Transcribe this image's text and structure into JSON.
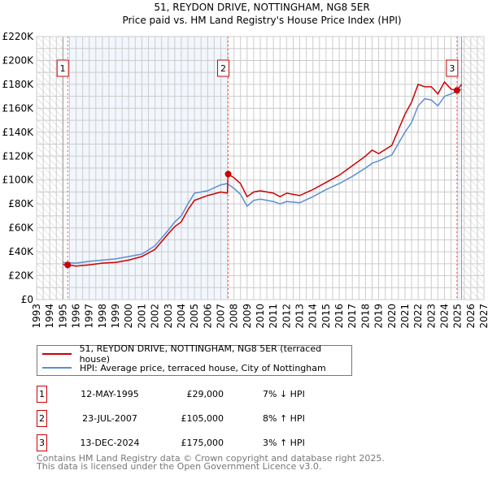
{
  "chart_data": {
    "type": "line",
    "title": "51, REYDON DRIVE, NOTTINGHAM, NG8 5ER",
    "subtitle": "Price paid vs. HM Land Registry's House Price Index (HPI)",
    "xlim": [
      1993,
      2027
    ],
    "ylim": [
      0,
      220000
    ],
    "x_ticks": [
      1993,
      1994,
      1995,
      1996,
      1997,
      1998,
      1999,
      2000,
      2001,
      2002,
      2003,
      2004,
      2005,
      2006,
      2007,
      2008,
      2009,
      2010,
      2011,
      2012,
      2013,
      2014,
      2015,
      2016,
      2017,
      2018,
      2019,
      2020,
      2021,
      2022,
      2023,
      2024,
      2025,
      2026,
      2027
    ],
    "y_ticks": [
      0,
      20000,
      40000,
      60000,
      80000,
      100000,
      120000,
      140000,
      160000,
      180000,
      200000,
      220000
    ],
    "y_tick_labels": [
      "£0",
      "£20K",
      "£40K",
      "£60K",
      "£80K",
      "£100K",
      "£120K",
      "£140K",
      "£160K",
      "£180K",
      "£200K",
      "£220K"
    ],
    "grid": true,
    "data_range": [
      1995.0,
      2025.3
    ],
    "series": [
      {
        "name": "51, REYDON DRIVE, NOTTINGHAM, NG8 5ER (terraced house)",
        "color": "#cc0000",
        "x": [
          1995.0,
          1995.4,
          1996,
          1997,
          1998,
          1999,
          2000,
          2001,
          2002,
          2003,
          2003.5,
          2004,
          2004.5,
          2005,
          2006,
          2007,
          2007.5,
          2007.56,
          2008,
          2008.5,
          2009,
          2009.5,
          2010,
          2011,
          2011.5,
          2012,
          2013,
          2014,
          2015,
          2016,
          2017,
          2018,
          2018.5,
          2019,
          2020,
          2021,
          2021.5,
          2022,
          2022.5,
          2023,
          2023.5,
          2024,
          2024.5,
          2024.95,
          2025.3
        ],
        "y": [
          29500,
          29000,
          28000,
          29000,
          30500,
          31000,
          33000,
          36000,
          42000,
          55000,
          61000,
          65000,
          75000,
          83000,
          87000,
          90000,
          89000,
          105000,
          102000,
          97000,
          86000,
          90000,
          91000,
          89000,
          86000,
          89000,
          87000,
          92000,
          98000,
          104000,
          112000,
          120000,
          125000,
          122000,
          129000,
          155000,
          165000,
          180000,
          178000,
          178000,
          172000,
          182000,
          176000,
          175000,
          180000
        ]
      },
      {
        "name": "HPI: Average price, terraced house, City of Nottingham",
        "color": "#5b8fd0",
        "x": [
          1995.0,
          1996,
          1997,
          1998,
          1999,
          2000,
          2001,
          2002,
          2003,
          2003.5,
          2004,
          2004.5,
          2005,
          2006,
          2007,
          2007.5,
          2008,
          2008.5,
          2009,
          2009.5,
          2010,
          2011,
          2011.5,
          2012,
          2013,
          2014,
          2015,
          2016,
          2017,
          2018,
          2018.5,
          2019,
          2020,
          2021,
          2021.5,
          2022,
          2022.5,
          2023,
          2023.5,
          2024,
          2024.5,
          2025.3
        ],
        "y": [
          31000,
          30500,
          32000,
          33000,
          34000,
          36000,
          38000,
          45000,
          58000,
          65000,
          70000,
          80000,
          89000,
          91000,
          96000,
          97000,
          93000,
          88000,
          78000,
          83000,
          84000,
          82000,
          80000,
          82000,
          81000,
          86000,
          92000,
          97000,
          103000,
          110000,
          114000,
          116000,
          121000,
          140000,
          148000,
          162000,
          168000,
          167000,
          162000,
          170000,
          172000,
          176000
        ]
      }
    ],
    "sales": [
      {
        "label": "1",
        "x": 1995.36,
        "y": 29000
      },
      {
        "label": "2",
        "x": 2007.56,
        "y": 105000
      },
      {
        "label": "3",
        "x": 2024.95,
        "y": 175000
      }
    ]
  },
  "legend": {
    "items": [
      {
        "label": "51, REYDON DRIVE, NOTTINGHAM, NG8 5ER (terraced house)",
        "color": "#cc0000"
      },
      {
        "label": "HPI: Average price, terraced house, City of Nottingham",
        "color": "#5b8fd0"
      }
    ]
  },
  "transactions": [
    {
      "num": "1",
      "date": "12-MAY-1995",
      "price": "£29,000",
      "hpi": "7% ↓ HPI"
    },
    {
      "num": "2",
      "date": "23-JUL-2007",
      "price": "£105,000",
      "hpi": "8% ↑ HPI"
    },
    {
      "num": "3",
      "date": "13-DEC-2024",
      "price": "£175,000",
      "hpi": "3% ↑ HPI"
    }
  ],
  "footer": {
    "line1": "Contains HM Land Registry data © Crown copyright and database right 2025.",
    "line2": "This data is licensed under the Open Government Licence v3.0."
  }
}
